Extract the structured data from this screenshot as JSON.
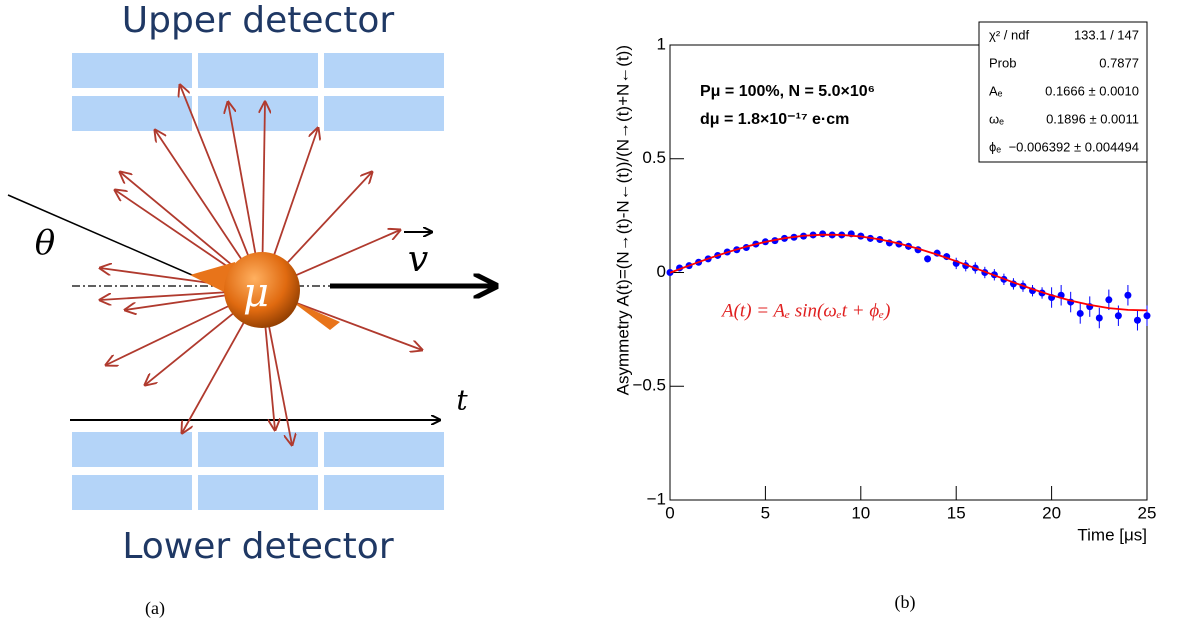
{
  "diagram": {
    "upper_label": "Upper detector",
    "lower_label": "Lower detector",
    "theta": "θ",
    "velocity": "v",
    "time": "t",
    "particle": "μ",
    "caption": "(a)"
  },
  "chart_data": {
    "type": "scatter",
    "caption": "(b)",
    "ylabel": "Asymmetry A(t)=(N→(t)-N←(t))/(N→(t)+N←(t))",
    "xlabel": "Time [μs]",
    "annotations": [
      "Pμ = 100%,  N = 5.0×10⁶",
      "dμ = 1.8×10⁻¹⁷ e·cm"
    ],
    "formula": "A(t) = Aₑ sin(ωₑt + ϕₑ)",
    "stats": [
      [
        "χ² / ndf",
        "133.1 / 147"
      ],
      [
        "Prob",
        "0.7877"
      ],
      [
        "Aₑ",
        "0.1666 ± 0.0010"
      ],
      [
        "ωₑ",
        "0.1896 ± 0.0011"
      ],
      [
        "ϕₑ",
        "−0.006392 ± 0.004494"
      ]
    ],
    "xlim": [
      0,
      25
    ],
    "xticks": [
      0,
      5,
      10,
      15,
      20,
      25
    ],
    "ylim": [
      -1,
      1
    ],
    "yticks": [
      {
        "value": -1,
        "label": "−1"
      },
      {
        "value": -0.5,
        "label": "−0.5"
      },
      0,
      0.5,
      1
    ],
    "series": [
      {
        "type": "scatter",
        "color": "#0000ff",
        "x": [
          0,
          0.5,
          1,
          1.5,
          2,
          2.5,
          3,
          3.5,
          4,
          4.5,
          5,
          5.5,
          6,
          6.5,
          7,
          7.5,
          8,
          8.5,
          9,
          9.5,
          10,
          10.5,
          11,
          11.5,
          12,
          12.5,
          13,
          13.5,
          14,
          14.5,
          15,
          15.5,
          16,
          16.5,
          17,
          17.5,
          18,
          18.5,
          19,
          19.5,
          20,
          20.5,
          21,
          21.5,
          22,
          22.5,
          23,
          23.5,
          24,
          24.5,
          25
        ],
        "values": [
          0,
          0.02,
          0.03,
          0.045,
          0.06,
          0.075,
          0.09,
          0.1,
          0.11,
          0.125,
          0.135,
          0.14,
          0.15,
          0.155,
          0.16,
          0.165,
          0.17,
          0.165,
          0.165,
          0.17,
          0.16,
          0.15,
          0.145,
          0.13,
          0.125,
          0.115,
          0.1,
          0.06,
          0.085,
          0.07,
          0.04,
          0.03,
          0.02,
          0,
          -0.01,
          -0.03,
          -0.05,
          -0.06,
          -0.08,
          -0.09,
          -0.11,
          -0.1,
          -0.13,
          -0.18,
          -0.15,
          -0.2,
          -0.12,
          -0.19,
          -0.1,
          -0.21,
          -0.19
        ],
        "errors": [
          0.006,
          0.006,
          0.006,
          0.006,
          0.006,
          0.006,
          0.006,
          0.006,
          0.006,
          0.006,
          0.01,
          0.01,
          0.01,
          0.01,
          0.01,
          0.01,
          0.01,
          0.01,
          0.01,
          0.01,
          0.015,
          0.015,
          0.015,
          0.015,
          0.015,
          0.015,
          0.015,
          0.015,
          0.015,
          0.015,
          0.025,
          0.025,
          0.025,
          0.025,
          0.025,
          0.025,
          0.025,
          0.025,
          0.025,
          0.025,
          0.045,
          0.045,
          0.045,
          0.045,
          0.045,
          0.045,
          0.045,
          0.045,
          0.045,
          0.045,
          0.045
        ]
      },
      {
        "type": "line",
        "color": "#ff0000",
        "x": [
          0,
          1,
          2,
          3,
          4,
          5,
          6,
          7,
          8,
          9,
          10,
          11,
          12,
          13,
          14,
          15,
          16,
          17,
          18,
          19,
          20,
          21,
          22,
          23,
          24,
          25
        ],
        "values": [
          -0.0011,
          0.0304,
          0.0607,
          0.0888,
          0.1138,
          0.1347,
          0.1508,
          0.1614,
          0.1663,
          0.1652,
          0.1583,
          0.1456,
          0.1277,
          0.1051,
          0.0787,
          0.0498,
          0.019,
          -0.0125,
          -0.0436,
          -0.0732,
          -0.1002,
          -0.1236,
          -0.1425,
          -0.1565,
          -0.1643,
          -0.1665
        ]
      }
    ]
  }
}
